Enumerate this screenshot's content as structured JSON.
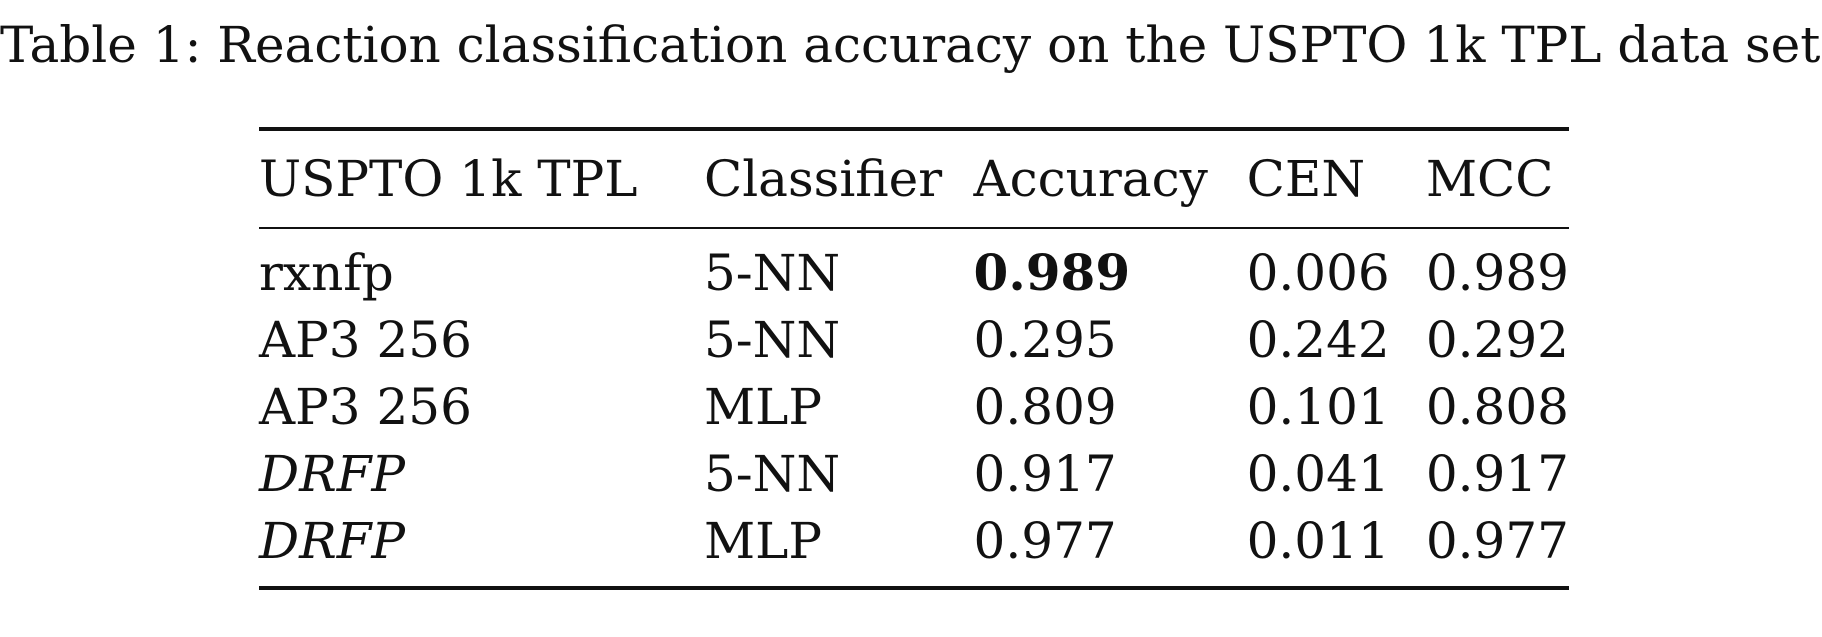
{
  "caption": "Table 1: Reaction classification accuracy on the USPTO 1k TPL data set.",
  "table": {
    "headers": [
      "USPTO 1k TPL",
      "Classifier",
      "Accuracy",
      "CEN",
      "MCC"
    ],
    "rows": [
      {
        "method": "rxnfp",
        "classifier": "5-NN",
        "accuracy": "0.989",
        "cen": "0.006",
        "mcc": "0.989",
        "method_italic": false,
        "accuracy_bold": true
      },
      {
        "method": "AP3 256",
        "classifier": "5-NN",
        "accuracy": "0.295",
        "cen": "0.242",
        "mcc": "0.292",
        "method_italic": false,
        "accuracy_bold": false
      },
      {
        "method": "AP3 256",
        "classifier": "MLP",
        "accuracy": "0.809",
        "cen": "0.101",
        "mcc": "0.808",
        "method_italic": false,
        "accuracy_bold": false
      },
      {
        "method": "DRFP",
        "classifier": "5-NN",
        "accuracy": "0.917",
        "cen": "0.041",
        "mcc": "0.917",
        "method_italic": true,
        "accuracy_bold": false
      },
      {
        "method": "DRFP",
        "classifier": "MLP",
        "accuracy": "0.977",
        "cen": "0.011",
        "mcc": "0.977",
        "method_italic": true,
        "accuracy_bold": false
      }
    ]
  }
}
